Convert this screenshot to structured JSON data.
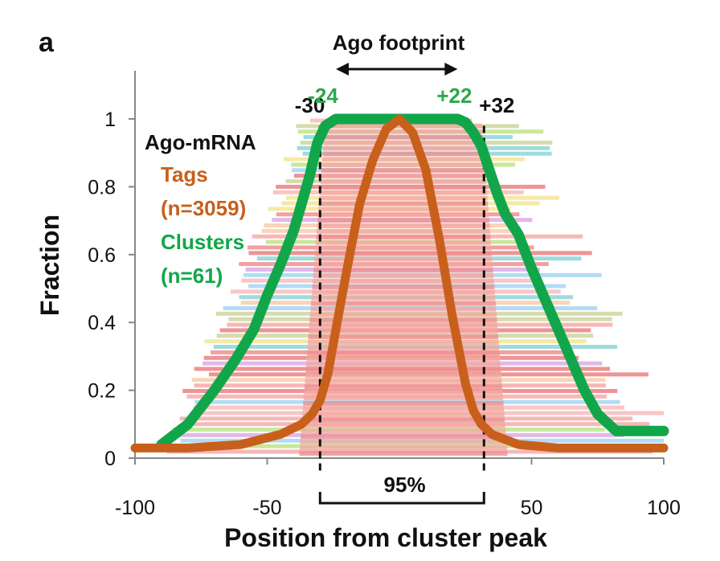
{
  "panel_label": "a",
  "colors": {
    "clusters": "#12a64a",
    "tags": "#c8601c",
    "footprint_label": "#2da84c",
    "dark": "#111111"
  },
  "chart_data": {
    "type": "line",
    "xlabel": "Position from cluster peak",
    "ylabel": "Fraction",
    "xlim": [
      -100,
      100
    ],
    "ylim": [
      0,
      1.1
    ],
    "xticks": [
      -100,
      -50,
      50,
      100
    ],
    "xtick_labels": [
      "-100",
      "-50",
      "50",
      "100"
    ],
    "yticks": [
      0,
      0.2,
      0.4,
      0.6,
      0.8,
      1
    ],
    "ytick_labels": [
      "0",
      "0.2",
      "0.4",
      "0.6",
      "0.8",
      "1"
    ],
    "grid": false,
    "legend": {
      "placement": "top-left",
      "title": "Ago-mRNA",
      "entries": [
        {
          "label": "Tags",
          "count": "(n=3059)",
          "color": "#c8601c"
        },
        {
          "label": "Clusters",
          "count": "(n=61)",
          "color": "#12a64a"
        }
      ]
    },
    "series": [
      {
        "name": "Clusters",
        "color": "#12a64a",
        "x": [
          -90,
          -80,
          -70,
          -62,
          -55,
          -50,
          -45,
          -40,
          -37,
          -34,
          -31,
          -28,
          -24,
          22,
          25,
          28,
          31,
          34,
          37,
          40,
          45,
          50,
          55,
          60,
          65,
          70,
          75,
          82,
          90,
          100
        ],
        "y": [
          0.04,
          0.1,
          0.2,
          0.29,
          0.38,
          0.48,
          0.57,
          0.67,
          0.75,
          0.83,
          0.93,
          0.98,
          1.0,
          1.0,
          0.99,
          0.96,
          0.92,
          0.85,
          0.78,
          0.72,
          0.66,
          0.56,
          0.47,
          0.38,
          0.29,
          0.2,
          0.13,
          0.08,
          0.08,
          0.08
        ]
      },
      {
        "name": "Tags",
        "color": "#c8601c",
        "x": [
          -100,
          -80,
          -60,
          -45,
          -37,
          -33,
          -30,
          -27,
          -24,
          -20,
          -15,
          -10,
          -5,
          0,
          5,
          10,
          15,
          20,
          25,
          28,
          31,
          35,
          45,
          60,
          80,
          100
        ],
        "y": [
          0.03,
          0.03,
          0.04,
          0.07,
          0.1,
          0.13,
          0.17,
          0.25,
          0.38,
          0.55,
          0.75,
          0.88,
          0.97,
          1.0,
          0.96,
          0.85,
          0.65,
          0.42,
          0.22,
          0.14,
          0.1,
          0.07,
          0.04,
          0.03,
          0.03,
          0.03
        ]
      }
    ],
    "annotations": {
      "footprint_label": "Ago footprint",
      "footprint_inner": {
        "left": -24,
        "right": 22,
        "left_label": "-24",
        "right_label": "+22"
      },
      "footprint_outer": {
        "left": -30,
        "right": 32,
        "left_label": "-30",
        "right_label": "+32"
      },
      "coverage_label": "95%"
    }
  }
}
